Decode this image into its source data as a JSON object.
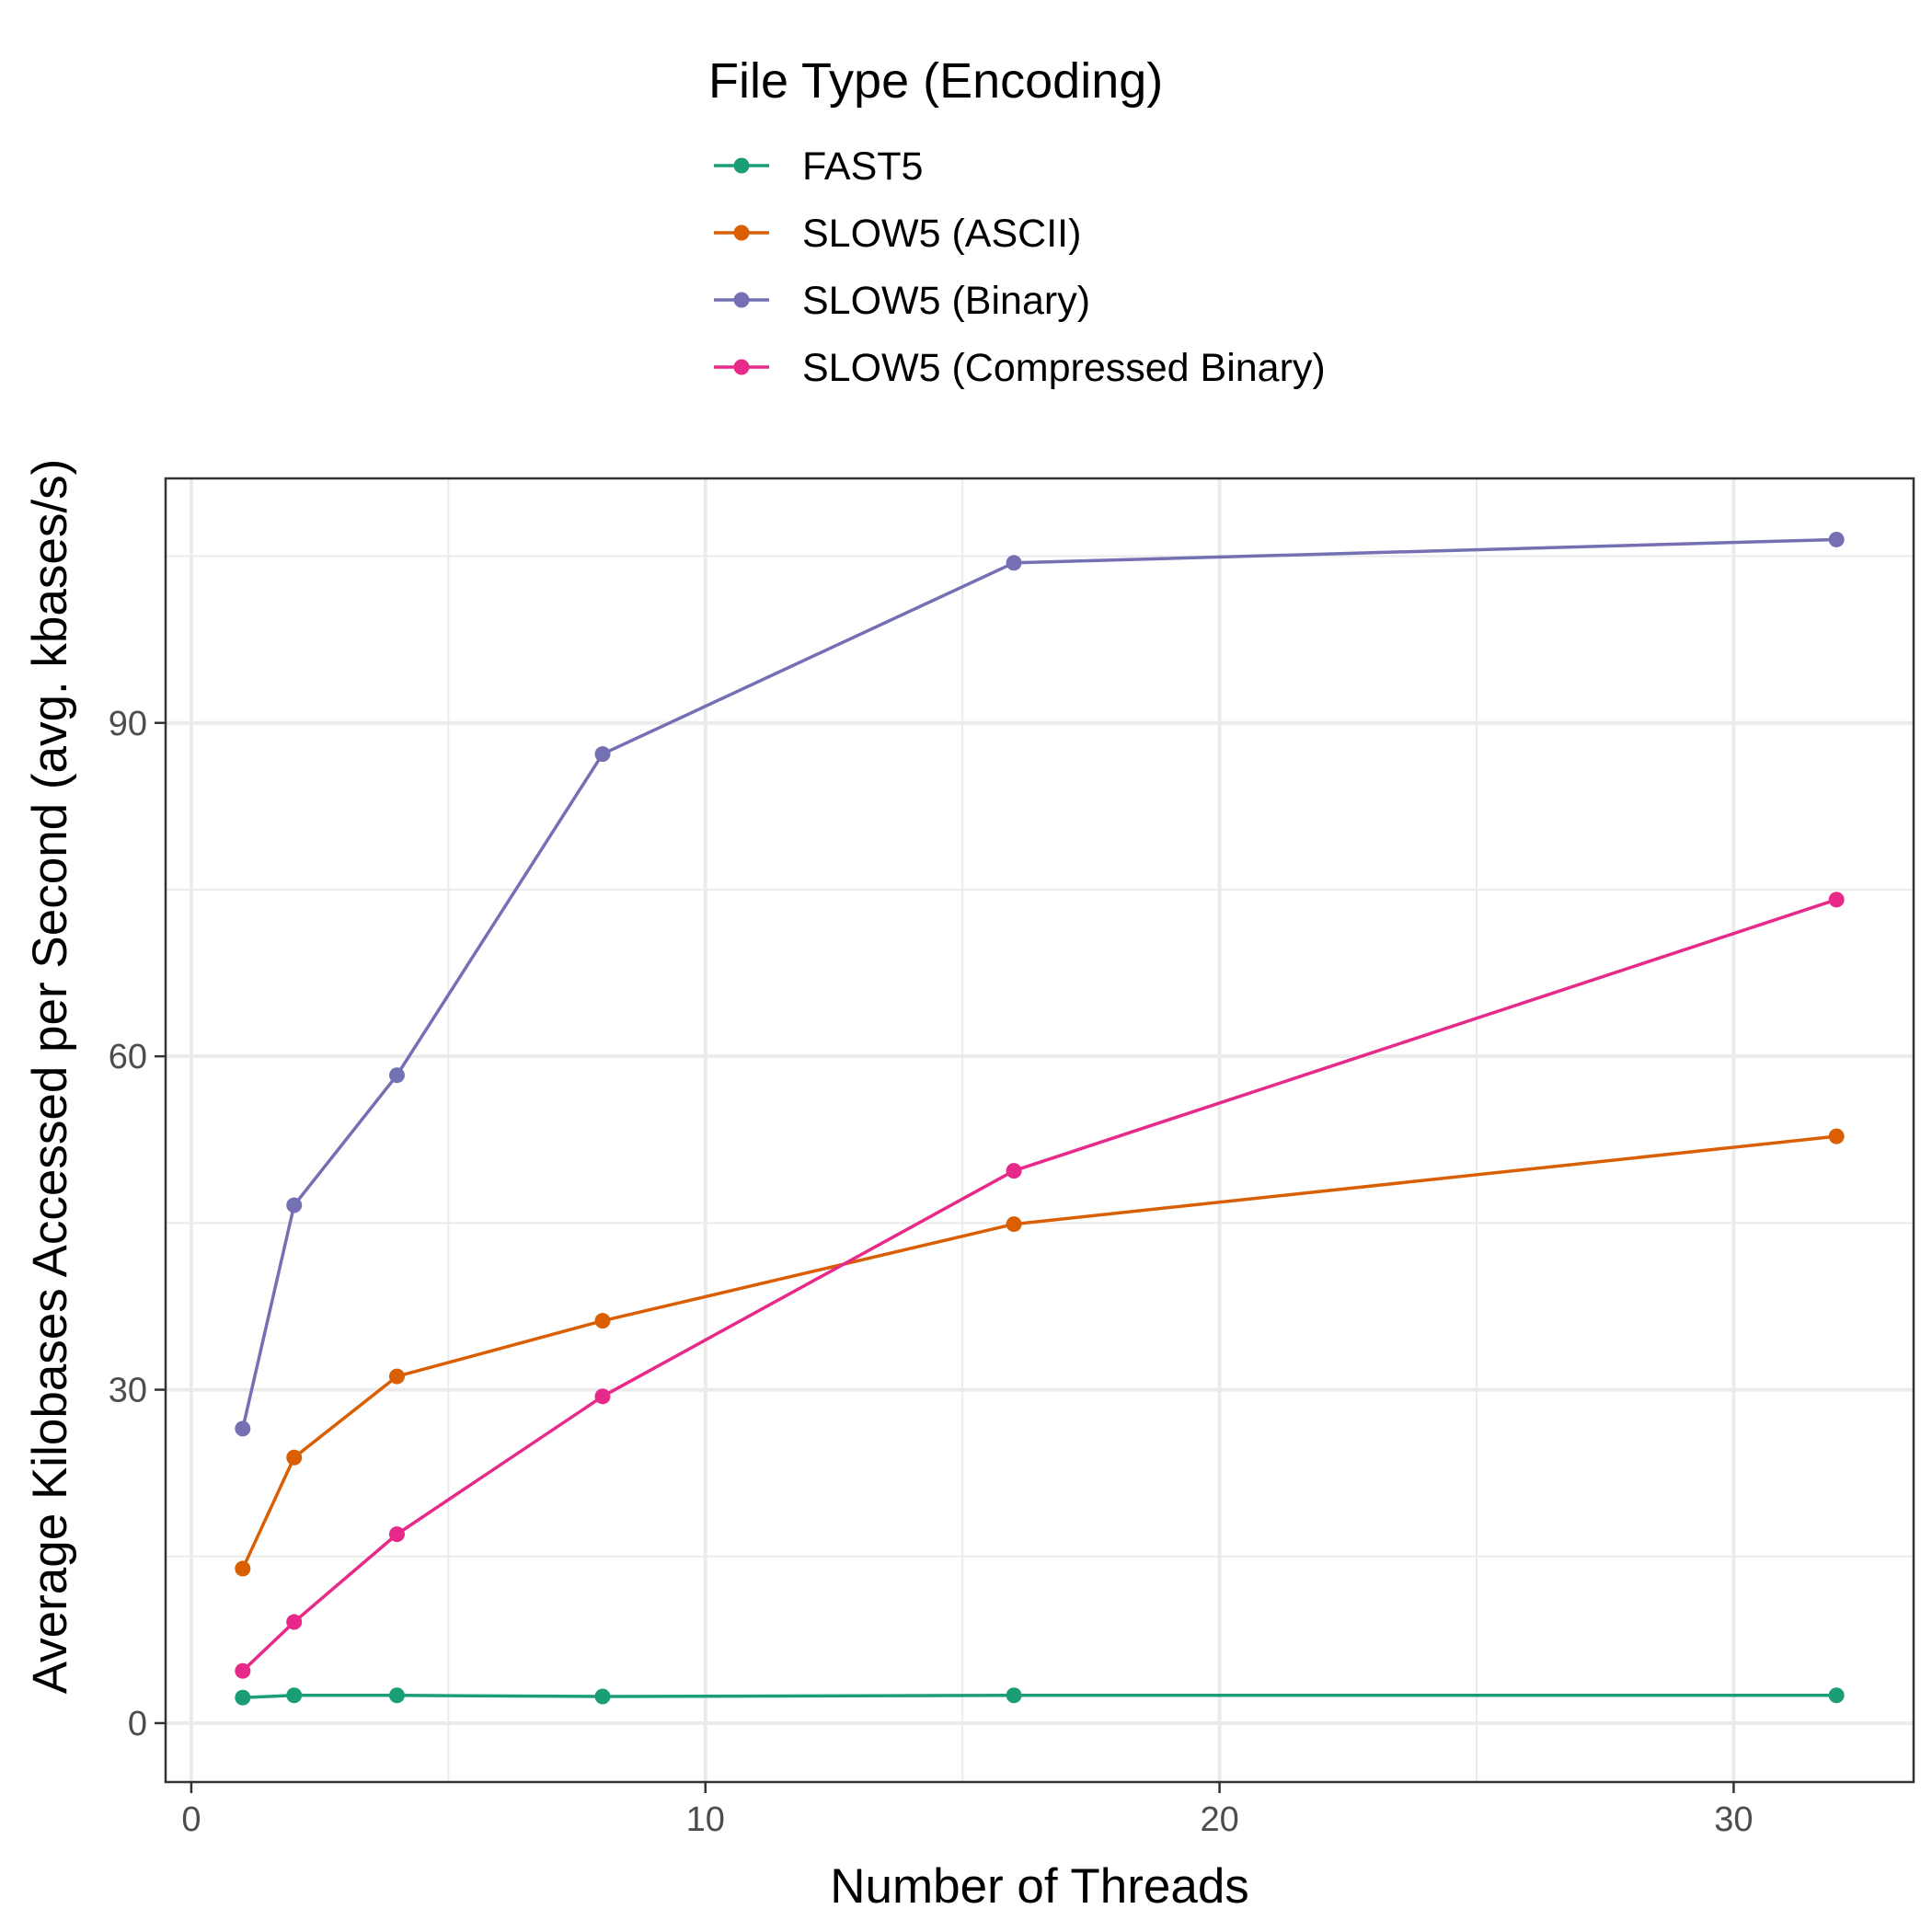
{
  "chart_data": {
    "type": "line",
    "xlabel": "Number of Threads",
    "ylabel": "Average Kilobases Accessed per Second (avg. kbases/s)",
    "x": [
      1,
      2,
      4,
      8,
      16,
      32
    ],
    "xlim": [
      -0.5,
      33.5
    ],
    "ylim": [
      -5.3,
      112
    ],
    "xticks": [
      0,
      10,
      20,
      30
    ],
    "yticks": [
      0,
      30,
      60,
      90
    ],
    "grid": true,
    "legend": {
      "title": "File Type (Encoding)",
      "position": "top"
    },
    "series": [
      {
        "name": "FAST5",
        "color": "#1b9e77",
        "values": [
          2.3,
          2.5,
          2.5,
          2.4,
          2.5,
          2.5
        ]
      },
      {
        "name": "SLOW5 (ASCII)",
        "color": "#d95f02",
        "values": [
          13.9,
          23.9,
          31.2,
          36.2,
          44.9,
          52.8
        ]
      },
      {
        "name": "SLOW5 (Binary)",
        "color": "#7570b3",
        "values": [
          26.5,
          46.6,
          58.3,
          87.2,
          104.4,
          106.5
        ]
      },
      {
        "name": "SLOW5 (Compressed Binary)",
        "color": "#e7298a",
        "values": [
          4.7,
          9.1,
          17.0,
          29.4,
          49.7,
          74.1
        ]
      }
    ]
  }
}
